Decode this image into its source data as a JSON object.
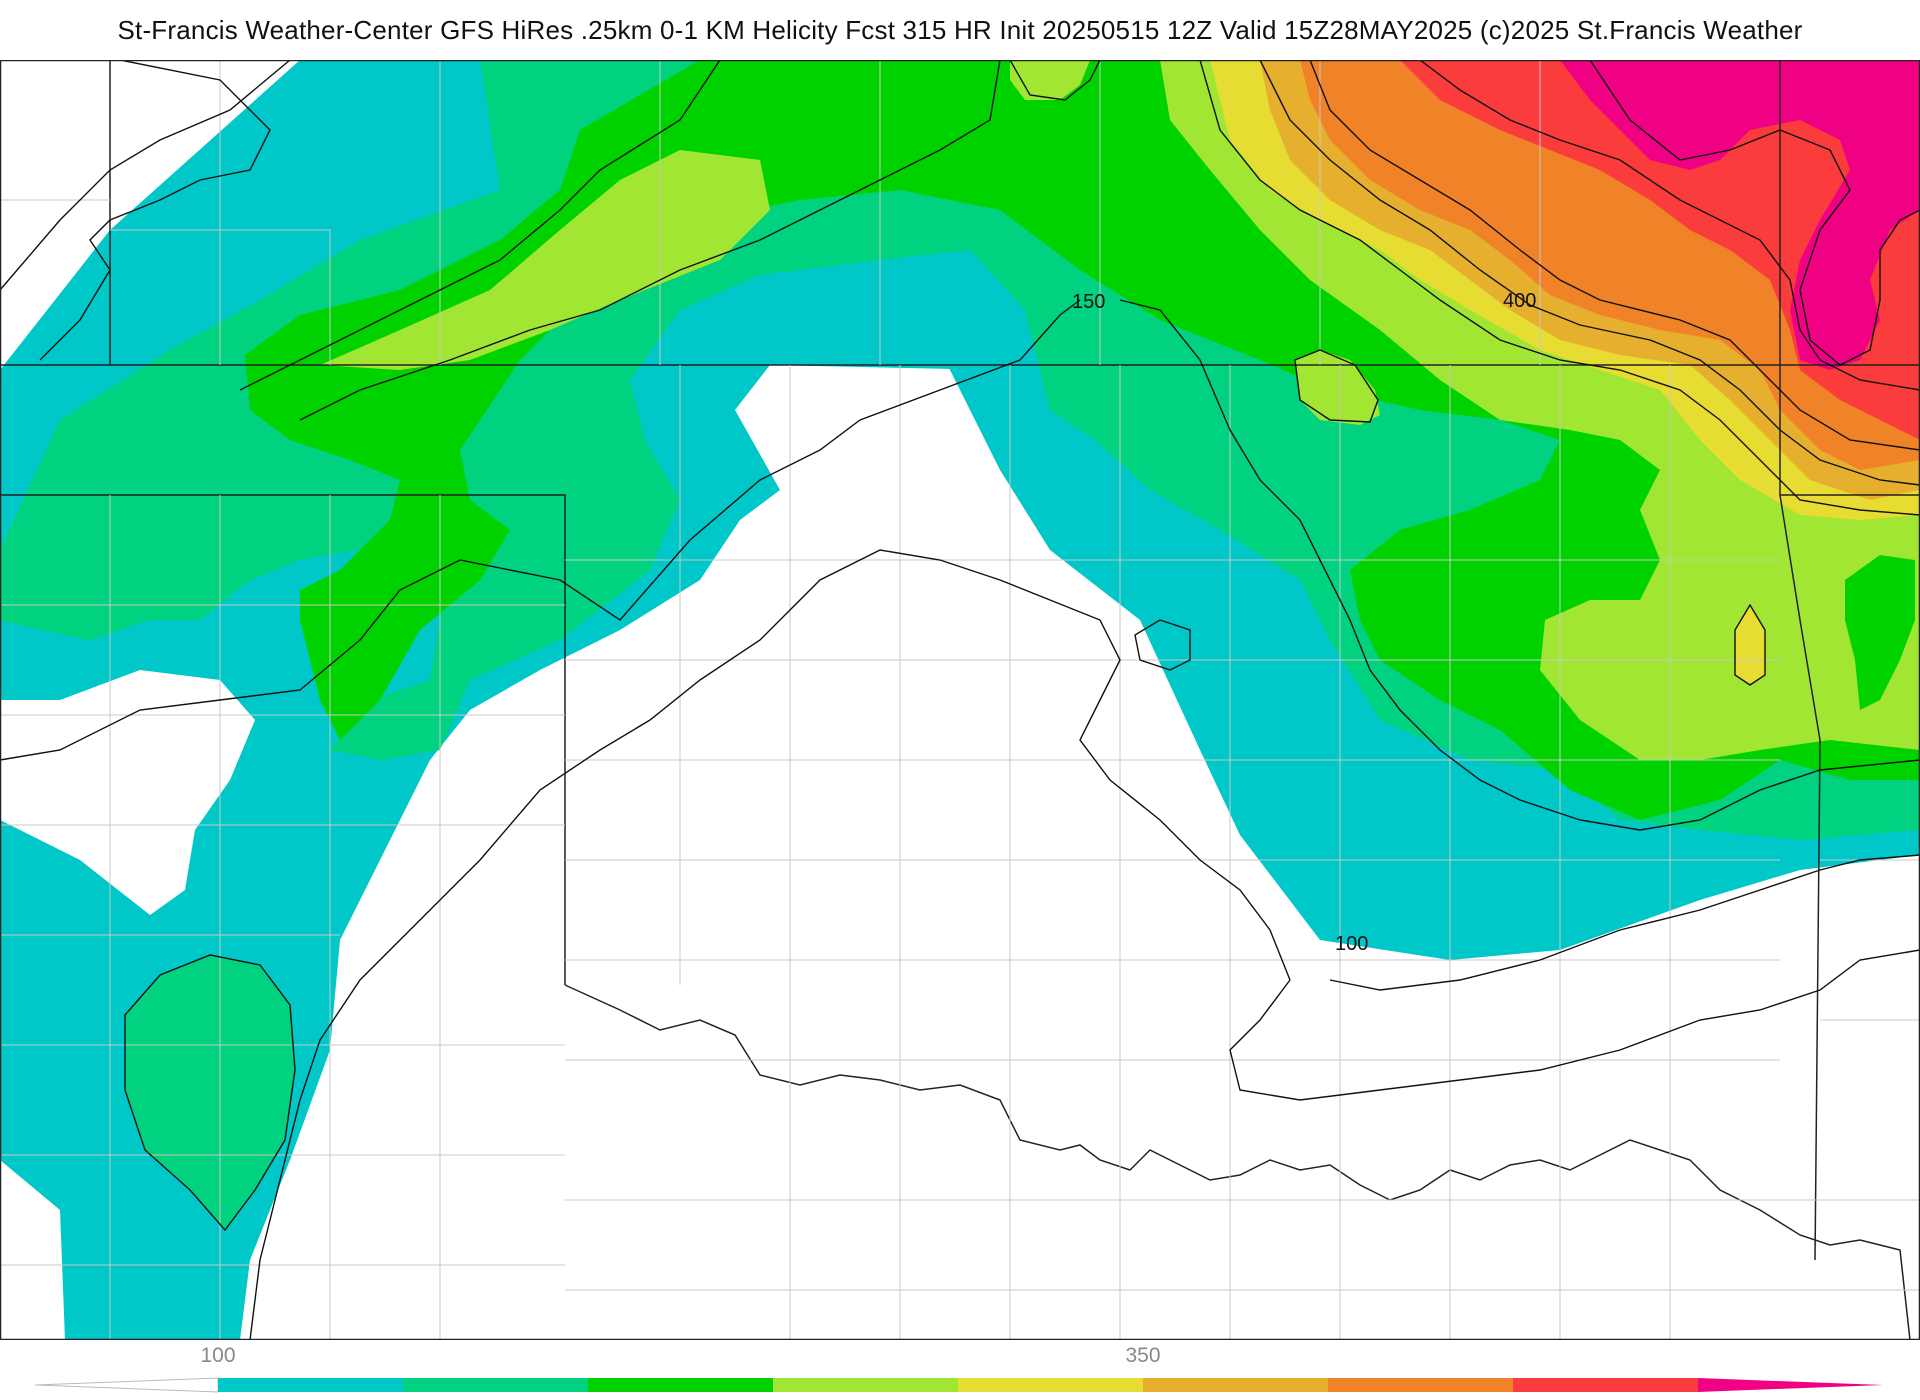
{
  "header": {
    "title": "St-Francis Weather-Center GFS HiRes .25km 0-1 KM Helicity Fcst 315 HR Init 20250515 12Z  Valid 15Z28MAY2025    (c)2025 St.Francis Weather"
  },
  "map": {
    "contour_labels": [
      "150",
      "400",
      "100"
    ]
  },
  "colorbar": {
    "tick_labels": [
      "100",
      "350"
    ],
    "colors": [
      "#00c8c8",
      "#00d27f",
      "#00d200",
      "#a0e632",
      "#e6dc32",
      "#e6af2d",
      "#f08228",
      "#fa3c3c",
      "#f00082"
    ]
  }
}
